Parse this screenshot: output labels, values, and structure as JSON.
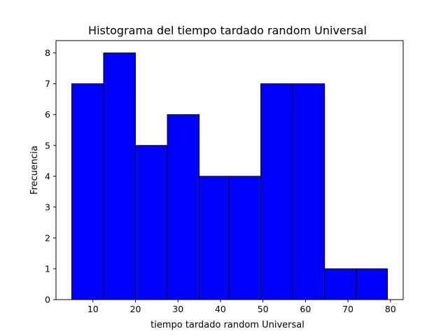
{
  "chart_data": {
    "type": "bar",
    "title": "Histograma del tiempo tardado random Universal",
    "xlabel": "tiempo tardado random Universal",
    "ylabel": "Frecuencia",
    "bins": [
      {
        "start": 5.0,
        "end": 12.5,
        "count": 7
      },
      {
        "start": 12.5,
        "end": 20.0,
        "count": 8
      },
      {
        "start": 20.0,
        "end": 27.5,
        "count": 5
      },
      {
        "start": 27.5,
        "end": 35.0,
        "count": 6
      },
      {
        "start": 35.0,
        "end": 42.0,
        "count": 4
      },
      {
        "start": 42.0,
        "end": 49.5,
        "count": 4
      },
      {
        "start": 49.5,
        "end": 57.0,
        "count": 7
      },
      {
        "start": 57.0,
        "end": 64.5,
        "count": 7
      },
      {
        "start": 64.5,
        "end": 72.0,
        "count": 1
      },
      {
        "start": 72.0,
        "end": 79.3,
        "count": 1
      }
    ],
    "xlim": [
      1.3,
      83.0
    ],
    "ylim": [
      0,
      8.4
    ],
    "xticks": [
      10,
      20,
      30,
      40,
      50,
      60,
      70,
      80
    ],
    "yticks": [
      0,
      1,
      2,
      3,
      4,
      5,
      6,
      7,
      8
    ],
    "bar_color": "#0000ff",
    "edge_color": "#000000",
    "grid": false,
    "legend": "none"
  }
}
